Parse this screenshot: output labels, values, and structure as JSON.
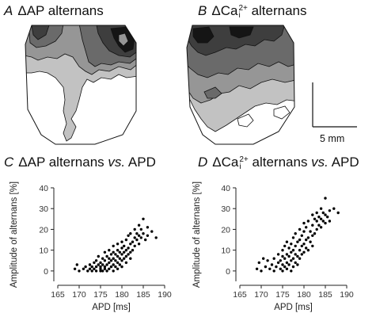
{
  "panels": {
    "A": {
      "letter": "A",
      "title": "ΔAP alternans"
    },
    "B": {
      "letter": "B",
      "title_pre": "ΔCa",
      "sup": "2+",
      "sub": "i",
      "title_post": " alternans"
    },
    "C": {
      "letter": "C",
      "title_pre": "ΔAP alternans ",
      "vs": "vs.",
      "title_post": " APD"
    },
    "D": {
      "letter": "D",
      "title_pre": "ΔCa",
      "sup": "2+",
      "sub": "i",
      "title_mid": " alternans ",
      "vs": "vs.",
      "title_post": " APD"
    }
  },
  "scale_bar": {
    "label": "5 mm"
  },
  "colors": {
    "contour_levels": [
      "#ffffff",
      "#c2c2c2",
      "#969696",
      "#6a6a6a",
      "#3e3e3e",
      "#151515"
    ],
    "points": "#000000"
  },
  "chart_data": [
    {
      "type": "scatter",
      "panel": "C",
      "xlabel": "APD [ms]",
      "ylabel": "Amplitude of alternans   [%]",
      "xlim": [
        165,
        190
      ],
      "ylim": [
        -5,
        40
      ],
      "xticks": [
        165,
        170,
        175,
        180,
        185,
        190
      ],
      "yticks": [
        0,
        10,
        20,
        30,
        40
      ],
      "points": [
        [
          169,
          1
        ],
        [
          169.5,
          3
        ],
        [
          170,
          0
        ],
        [
          171,
          1
        ],
        [
          171.5,
          2
        ],
        [
          172,
          0
        ],
        [
          172.5,
          1
        ],
        [
          172.5,
          3
        ],
        [
          173,
          0
        ],
        [
          173,
          2
        ],
        [
          173.5,
          4
        ],
        [
          173.5,
          1
        ],
        [
          174,
          0
        ],
        [
          174,
          2
        ],
        [
          174,
          5
        ],
        [
          174.5,
          3
        ],
        [
          174.5,
          7
        ],
        [
          175,
          0
        ],
        [
          175,
          1
        ],
        [
          175,
          2
        ],
        [
          175,
          4
        ],
        [
          175.5,
          0
        ],
        [
          175.5,
          3
        ],
        [
          175.5,
          6
        ],
        [
          176,
          1
        ],
        [
          176,
          2
        ],
        [
          176,
          5
        ],
        [
          176,
          9
        ],
        [
          176.5,
          0
        ],
        [
          176.5,
          3
        ],
        [
          176.5,
          7
        ],
        [
          177,
          1
        ],
        [
          177,
          4
        ],
        [
          177,
          6
        ],
        [
          177,
          10
        ],
        [
          177.5,
          2
        ],
        [
          177.5,
          5
        ],
        [
          177.5,
          8
        ],
        [
          178,
          0
        ],
        [
          178,
          3
        ],
        [
          178,
          6
        ],
        [
          178,
          9
        ],
        [
          178,
          12
        ],
        [
          178.5,
          2
        ],
        [
          178.5,
          5
        ],
        [
          178.5,
          8
        ],
        [
          179,
          1
        ],
        [
          179,
          4
        ],
        [
          179,
          7
        ],
        [
          179,
          10
        ],
        [
          179,
          13
        ],
        [
          179.5,
          3
        ],
        [
          179.5,
          6
        ],
        [
          179.5,
          9
        ],
        [
          180,
          2
        ],
        [
          180,
          5
        ],
        [
          180,
          8
        ],
        [
          180,
          11
        ],
        [
          180,
          14
        ],
        [
          180.5,
          6
        ],
        [
          180.5,
          9
        ],
        [
          180.5,
          12
        ],
        [
          181,
          4
        ],
        [
          181,
          7
        ],
        [
          181,
          10
        ],
        [
          181,
          15
        ],
        [
          181.5,
          8
        ],
        [
          181.5,
          11
        ],
        [
          181.5,
          17
        ],
        [
          182,
          6
        ],
        [
          182,
          9
        ],
        [
          182,
          13
        ],
        [
          182,
          18
        ],
        [
          182.5,
          10
        ],
        [
          182.5,
          14
        ],
        [
          183,
          12
        ],
        [
          183,
          16
        ],
        [
          183,
          20
        ],
        [
          183.5,
          15
        ],
        [
          183.5,
          18
        ],
        [
          184,
          13
        ],
        [
          184,
          17
        ],
        [
          184,
          22
        ],
        [
          184.5,
          16
        ],
        [
          184.5,
          20
        ],
        [
          185,
          18
        ],
        [
          185,
          25
        ],
        [
          185.5,
          15
        ],
        [
          186,
          17
        ],
        [
          186,
          21
        ],
        [
          187,
          19
        ],
        [
          188,
          16
        ]
      ]
    },
    {
      "type": "scatter",
      "panel": "D",
      "xlabel": "APD [ms]",
      "ylabel": "Amplitude of alternans   [%]",
      "xlim": [
        165,
        190
      ],
      "ylim": [
        -5,
        40
      ],
      "xticks": [
        165,
        170,
        175,
        180,
        185,
        190
      ],
      "yticks": [
        0,
        10,
        20,
        30,
        40
      ],
      "points": [
        [
          169,
          1
        ],
        [
          169.5,
          4
        ],
        [
          170,
          0
        ],
        [
          170.5,
          6
        ],
        [
          171,
          2
        ],
        [
          171.5,
          5
        ],
        [
          172,
          1
        ],
        [
          172.5,
          3
        ],
        [
          173,
          0
        ],
        [
          173,
          6
        ],
        [
          173.5,
          2
        ],
        [
          174,
          4
        ],
        [
          174,
          8
        ],
        [
          174.5,
          1
        ],
        [
          174.5,
          5
        ],
        [
          175,
          0
        ],
        [
          175,
          3
        ],
        [
          175,
          7
        ],
        [
          175,
          10
        ],
        [
          175.5,
          2
        ],
        [
          175.5,
          6
        ],
        [
          175.5,
          12
        ],
        [
          176,
          1
        ],
        [
          176,
          4
        ],
        [
          176,
          8
        ],
        [
          176,
          14
        ],
        [
          176.5,
          3
        ],
        [
          176.5,
          7
        ],
        [
          176.5,
          11
        ],
        [
          177,
          0
        ],
        [
          177,
          5
        ],
        [
          177,
          9
        ],
        [
          177,
          13
        ],
        [
          177.5,
          2
        ],
        [
          177.5,
          6
        ],
        [
          177.5,
          10
        ],
        [
          177.5,
          16
        ],
        [
          178,
          4
        ],
        [
          178,
          8
        ],
        [
          178,
          12
        ],
        [
          178,
          18
        ],
        [
          178.5,
          3
        ],
        [
          178.5,
          7
        ],
        [
          178.5,
          14
        ],
        [
          179,
          6
        ],
        [
          179,
          10
        ],
        [
          179,
          15
        ],
        [
          179,
          20
        ],
        [
          179.5,
          8
        ],
        [
          179.5,
          12
        ],
        [
          179.5,
          17
        ],
        [
          180,
          9
        ],
        [
          180,
          13
        ],
        [
          180,
          19
        ],
        [
          180,
          23
        ],
        [
          180.5,
          11
        ],
        [
          180.5,
          15
        ],
        [
          180.5,
          21
        ],
        [
          181,
          10
        ],
        [
          181,
          16
        ],
        [
          181,
          24
        ],
        [
          181.5,
          14
        ],
        [
          181.5,
          19
        ],
        [
          182,
          12
        ],
        [
          182,
          17
        ],
        [
          182,
          22
        ],
        [
          182,
          27
        ],
        [
          182.5,
          18
        ],
        [
          182.5,
          25
        ],
        [
          183,
          20
        ],
        [
          183,
          24
        ],
        [
          183,
          28
        ],
        [
          183.5,
          22
        ],
        [
          183.5,
          26
        ],
        [
          184,
          21
        ],
        [
          184,
          25
        ],
        [
          184,
          30
        ],
        [
          184.5,
          24
        ],
        [
          184.5,
          28
        ],
        [
          185,
          23
        ],
        [
          185,
          27
        ],
        [
          185,
          35
        ],
        [
          185.5,
          26
        ],
        [
          186,
          24
        ],
        [
          186,
          29
        ],
        [
          187,
          30
        ],
        [
          188,
          28
        ]
      ]
    }
  ]
}
